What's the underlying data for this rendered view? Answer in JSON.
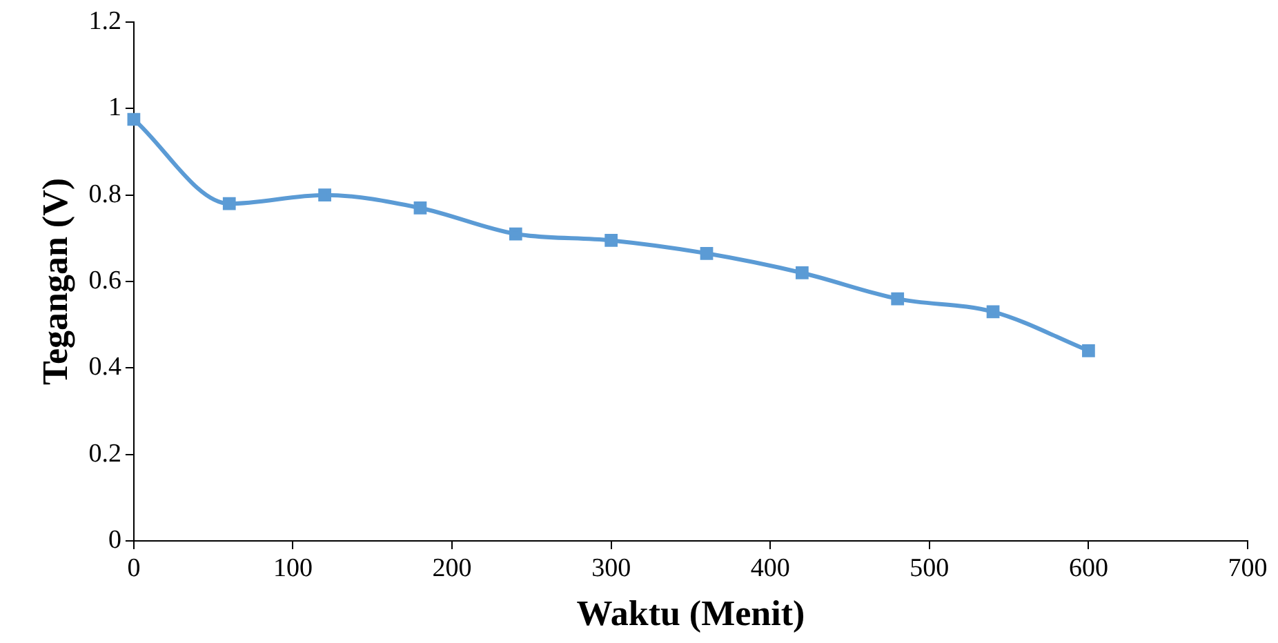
{
  "chart_data": {
    "type": "line",
    "xlabel": "Waktu (Menit)",
    "ylabel": "Tegangan (V)",
    "x": [
      0,
      60,
      120,
      180,
      240,
      300,
      360,
      420,
      480,
      540,
      600
    ],
    "series": [
      {
        "color": "#5b9bd5",
        "values": [
          0.975,
          0.78,
          0.8,
          0.77,
          0.71,
          0.695,
          0.665,
          0.62,
          0.56,
          0.53,
          0.44
        ]
      }
    ],
    "xlim": [
      0,
      700
    ],
    "xticks": [
      0,
      100,
      200,
      300,
      400,
      500,
      600,
      700
    ],
    "ylim": [
      0,
      1.2
    ],
    "yticks": [
      0,
      0.2,
      0.4,
      0.6,
      0.8,
      1,
      1.2
    ],
    "grid": false,
    "legend": false,
    "marker": "square",
    "line_style": "solid"
  }
}
